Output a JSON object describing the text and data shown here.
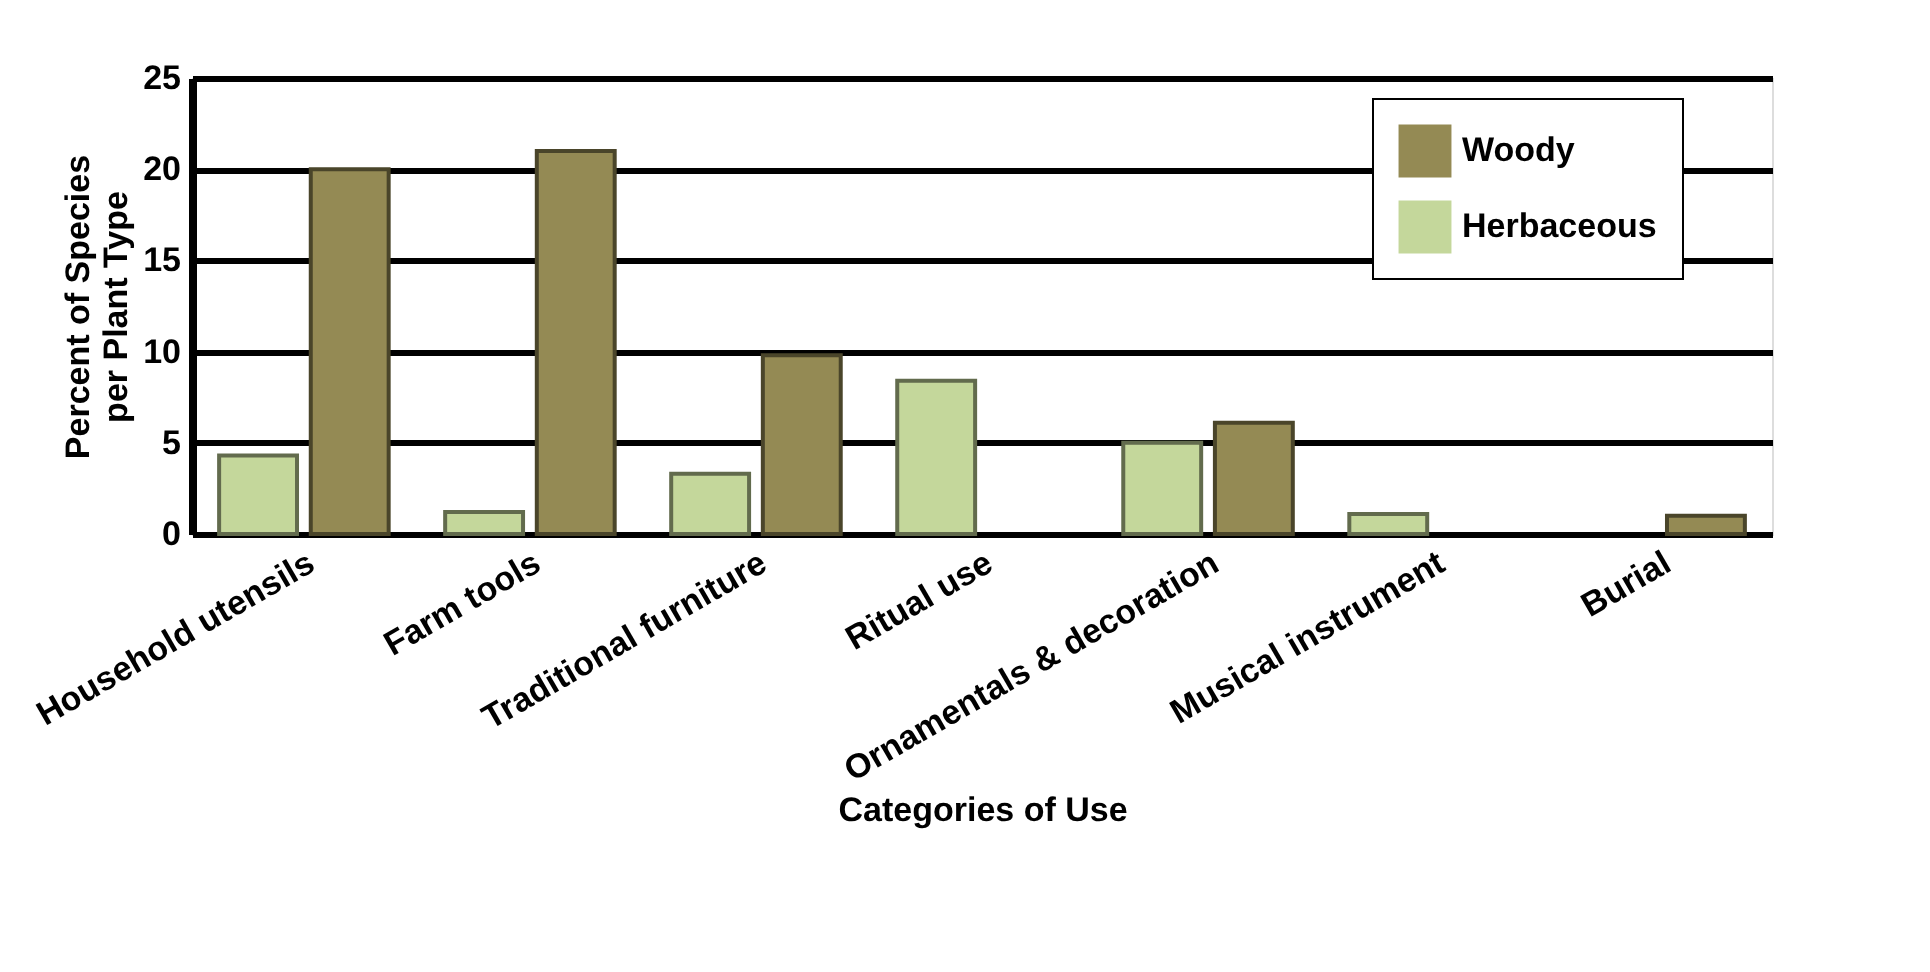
{
  "chart_data": {
    "type": "bar",
    "xlabel": "Categories of Use",
    "ylabel": "Percent of Species per Plant Type",
    "categories": [
      "Household utensils",
      "Farm tools",
      "Traditional furniture",
      "Ritual use",
      "Ornamentals & decoration",
      "Musical instrument",
      "Burial"
    ],
    "series": [
      {
        "name": "Herbaceous",
        "color": "#c4d79b",
        "values": [
          4.3,
          1.2,
          3.3,
          8.4,
          5.0,
          1.1,
          null
        ]
      },
      {
        "name": "Woody",
        "color": "#948a54",
        "values": [
          20,
          21,
          9.8,
          null,
          6.1,
          null,
          1.0
        ]
      }
    ],
    "ylim": [
      0,
      25
    ],
    "yticks": [
      0,
      5,
      10,
      15,
      20,
      25
    ],
    "grid": "y",
    "legend": "top right"
  }
}
